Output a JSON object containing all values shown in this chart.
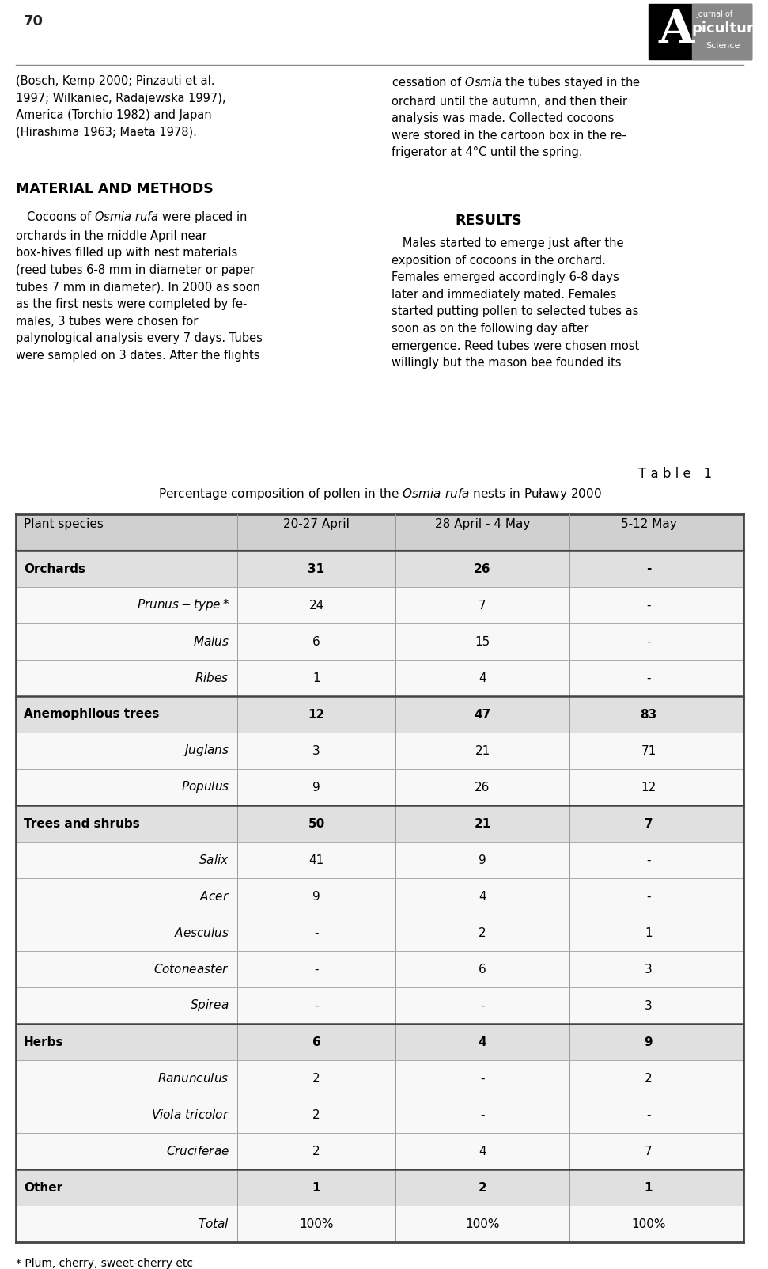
{
  "page_number": "70",
  "logo_text": [
    "A",
    "Journal of",
    "picultural",
    "Science"
  ],
  "left_col_text": [
    "(Bosch, Kemp 2000; Pinzauti et al. 1997; Wilkaniec, Radajewska 1997), America (Torchio 1982) and Japan (Hirashima 1963; Maeta 1978).",
    "MATERIAL AND METHODS",
    "Cocoons of Osmia rufa were placed in orchards in the middle April near box-hives filled up with nest materials (reed tubes 6-8 mm in diameter or paper tubes 7 mm in diameter). In 2000 as soon as the first nests were completed by females, 3 tubes were chosen for palynological analysis every 7 days. Tubes were sampled on 3 dates. After the flights"
  ],
  "right_col_text": [
    "cessation of Osmia the tubes stayed in the orchard until the autumn, and then their analysis was made. Collected cocoons were stored in the cartoon box in the refrigerator at 4°C until the spring.",
    "RESULTS",
    "Males started to emerge just after the exposition of cocoons in the orchard. Females emerged accordingly 6-8 days later and immediately mated. Females started putting pollen to selected tubes as soon as on the following day after emergence. Reed tubes were chosen most willingly but the mason bee founded its"
  ],
  "table_label": "Table  1",
  "table_title": "Percentage composition of pollen in the Osmia rufa nests in Puławy 2000",
  "table_headers": [
    "Plant species",
    "20-27 April",
    "28 April - 4 May",
    "5-12 May"
  ],
  "table_rows": [
    {
      "label": "Orchards",
      "bold": true,
      "indent": 0,
      "v1": "31",
      "v2": "26",
      "v3": "-",
      "shaded": true
    },
    {
      "label": "Prunus-type*",
      "bold": false,
      "italic": true,
      "indent": 1,
      "v1": "24",
      "v2": "7",
      "v3": "-",
      "shaded": false
    },
    {
      "label": "Malus",
      "bold": false,
      "italic": true,
      "indent": 1,
      "v1": "6",
      "v2": "15",
      "v3": "-",
      "shaded": false
    },
    {
      "label": "Ribes",
      "bold": false,
      "italic": true,
      "indent": 1,
      "v1": "1",
      "v2": "4",
      "v3": "-",
      "shaded": false
    },
    {
      "label": "Anemophilous trees",
      "bold": true,
      "indent": 0,
      "v1": "12",
      "v2": "47",
      "v3": "83",
      "shaded": true
    },
    {
      "label": "Juglans",
      "bold": false,
      "italic": true,
      "indent": 1,
      "v1": "3",
      "v2": "21",
      "v3": "71",
      "shaded": false
    },
    {
      "label": "Populus",
      "bold": false,
      "italic": true,
      "indent": 1,
      "v1": "9",
      "v2": "26",
      "v3": "12",
      "shaded": false
    },
    {
      "label": "Trees and shrubs",
      "bold": true,
      "indent": 0,
      "v1": "50",
      "v2": "21",
      "v3": "7",
      "shaded": true
    },
    {
      "label": "Salix",
      "bold": false,
      "italic": true,
      "indent": 1,
      "v1": "41",
      "v2": "9",
      "v3": "-",
      "shaded": false
    },
    {
      "label": "Acer",
      "bold": false,
      "italic": true,
      "indent": 1,
      "v1": "9",
      "v2": "4",
      "v3": "-",
      "shaded": false
    },
    {
      "label": "Aesculus",
      "bold": false,
      "italic": true,
      "indent": 1,
      "v1": "-",
      "v2": "2",
      "v3": "1",
      "shaded": false
    },
    {
      "label": "Cotoneaster",
      "bold": false,
      "italic": true,
      "indent": 1,
      "v1": "-",
      "v2": "6",
      "v3": "3",
      "shaded": false
    },
    {
      "label": "Spirea",
      "bold": false,
      "italic": true,
      "indent": 1,
      "v1": "-",
      "v2": "-",
      "v3": "3",
      "shaded": false
    },
    {
      "label": "Herbs",
      "bold": true,
      "indent": 0,
      "v1": "6",
      "v2": "4",
      "v3": "9",
      "shaded": true
    },
    {
      "label": "Ranunculus",
      "bold": false,
      "italic": true,
      "indent": 1,
      "v1": "2",
      "v2": "-",
      "v3": "2",
      "shaded": false
    },
    {
      "label": "Viola tricolor",
      "bold": false,
      "italic": true,
      "indent": 1,
      "v1": "2",
      "v2": "-",
      "v3": "-",
      "shaded": false
    },
    {
      "label": "Cruciferae",
      "bold": false,
      "italic": true,
      "indent": 1,
      "v1": "2",
      "v2": "4",
      "v3": "7",
      "shaded": false
    },
    {
      "label": "Other",
      "bold": true,
      "indent": 0,
      "v1": "1",
      "v2": "2",
      "v3": "1",
      "shaded": true
    },
    {
      "label": "Total",
      "bold": false,
      "italic": false,
      "indent": 1,
      "v1": "100%",
      "v2": "100%",
      "v3": "100%",
      "shaded": false
    }
  ],
  "footnote": "* Plum, cherry, sweet-cherry etc",
  "bg_color": "#ffffff",
  "shaded_color": "#e0e0e0",
  "header_shaded_color": "#d0d0d0",
  "text_color": "#000000"
}
